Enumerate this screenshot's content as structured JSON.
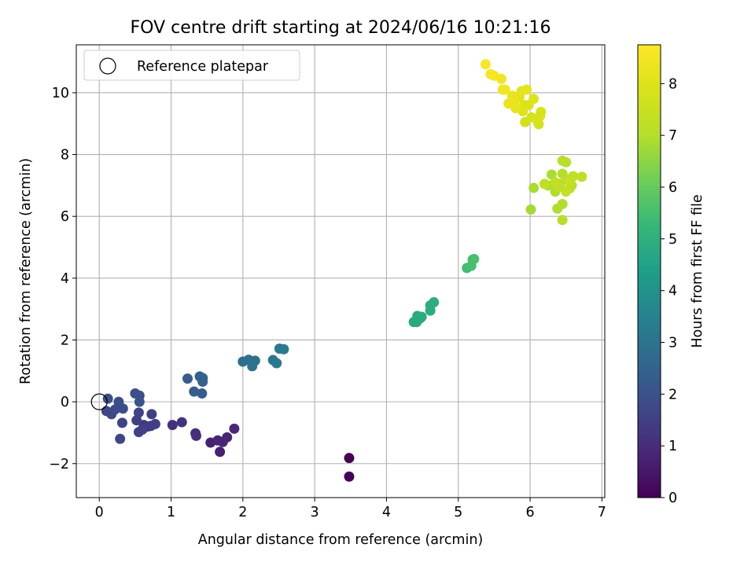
{
  "chart_data": {
    "type": "scatter",
    "title": "FOV centre drift starting at 2024/06/16 10:21:16",
    "xlabel": "Angular distance from reference (arcmin)",
    "ylabel": "Rotation from reference (arcmin)",
    "xlim": [
      -0.32,
      7.04
    ],
    "ylim": [
      -3.1,
      11.55
    ],
    "xticks": [
      "0",
      "1",
      "2",
      "3",
      "4",
      "5",
      "6",
      "7"
    ],
    "yticks": [
      "−2",
      "0",
      "2",
      "4",
      "6",
      "8",
      "10"
    ],
    "grid": true,
    "legend": {
      "position": "top-left",
      "entries": [
        {
          "label": "Reference platepar",
          "marker": "open-circle",
          "x": 0,
          "y": 0
        }
      ]
    },
    "colorbar": {
      "label": "Hours from first FF file",
      "colormap": "viridis",
      "range": [
        0,
        8.75
      ],
      "ticks": [
        "0",
        "1",
        "2",
        "3",
        "4",
        "5",
        "6",
        "7",
        "8"
      ]
    },
    "points": [
      [
        3.48,
        -1.82,
        0.02
      ],
      [
        3.48,
        -2.42,
        0.05
      ],
      [
        1.68,
        -1.62,
        0.7
      ],
      [
        1.55,
        -1.32,
        0.75
      ],
      [
        1.65,
        -1.25,
        0.8
      ],
      [
        1.72,
        -1.3,
        0.8
      ],
      [
        1.78,
        -1.15,
        0.82
      ],
      [
        1.88,
        -0.87,
        0.9
      ],
      [
        1.34,
        -1.02,
        1.0
      ],
      [
        1.35,
        -1.1,
        1.05
      ],
      [
        1.02,
        -0.75,
        1.1
      ],
      [
        1.15,
        -0.66,
        1.15
      ],
      [
        0.62,
        -0.75,
        1.3
      ],
      [
        0.68,
        -0.8,
        1.35
      ],
      [
        0.72,
        -0.78,
        1.4
      ],
      [
        0.78,
        -0.72,
        1.45
      ],
      [
        0.73,
        -0.4,
        1.5
      ],
      [
        0.6,
        -0.9,
        1.5
      ],
      [
        0.55,
        -0.98,
        1.55
      ],
      [
        0.52,
        -0.6,
        1.55
      ],
      [
        0.55,
        -0.35,
        1.6
      ],
      [
        0.32,
        -0.68,
        1.6
      ],
      [
        0.29,
        -1.2,
        1.65
      ],
      [
        0.1,
        -0.3,
        1.7
      ],
      [
        0.17,
        -0.4,
        1.75
      ],
      [
        0.22,
        -0.25,
        1.8
      ],
      [
        0.27,
        0.0,
        1.85
      ],
      [
        0.33,
        -0.22,
        1.85
      ],
      [
        0.12,
        0.1,
        1.9
      ],
      [
        0.5,
        0.27,
        1.95
      ],
      [
        0.56,
        0.2,
        2.0
      ],
      [
        0.56,
        0.0,
        2.05
      ],
      [
        1.23,
        0.75,
        2.25
      ],
      [
        1.32,
        0.33,
        2.3
      ],
      [
        1.43,
        0.27,
        2.35
      ],
      [
        1.4,
        0.82,
        2.4
      ],
      [
        1.44,
        0.77,
        2.45
      ],
      [
        1.44,
        0.65,
        2.45
      ],
      [
        2.0,
        1.3,
        2.85
      ],
      [
        2.08,
        1.36,
        2.9
      ],
      [
        2.13,
        1.15,
        2.95
      ],
      [
        2.17,
        1.33,
        3.0
      ],
      [
        2.42,
        1.35,
        3.1
      ],
      [
        2.47,
        1.25,
        3.15
      ],
      [
        2.51,
        1.72,
        3.2
      ],
      [
        2.57,
        1.7,
        3.25
      ],
      [
        4.38,
        2.58,
        4.75
      ],
      [
        4.42,
        2.58,
        4.75
      ],
      [
        4.43,
        2.78,
        4.8
      ],
      [
        4.47,
        2.7,
        4.85
      ],
      [
        4.49,
        2.75,
        4.85
      ],
      [
        4.61,
        2.95,
        4.9
      ],
      [
        4.61,
        3.12,
        4.9
      ],
      [
        4.66,
        3.22,
        4.95
      ],
      [
        5.12,
        4.33,
        5.45
      ],
      [
        5.18,
        4.4,
        5.5
      ],
      [
        5.2,
        4.6,
        5.55
      ],
      [
        5.22,
        4.62,
        5.55
      ],
      [
        6.01,
        6.22,
        6.8
      ],
      [
        6.05,
        6.92,
        6.85
      ],
      [
        6.3,
        7.35,
        6.9
      ],
      [
        6.25,
        7.0,
        6.9
      ],
      [
        6.35,
        6.8,
        6.95
      ],
      [
        6.38,
        6.25,
        6.95
      ],
      [
        6.42,
        7.05,
        7.0
      ],
      [
        6.45,
        7.38,
        7.0
      ],
      [
        6.45,
        6.4,
        7.0
      ],
      [
        6.45,
        5.88,
        7.05
      ],
      [
        6.45,
        7.8,
        7.05
      ],
      [
        6.5,
        7.75,
        7.1
      ],
      [
        6.52,
        7.2,
        7.1
      ],
      [
        6.55,
        6.9,
        7.15
      ],
      [
        6.58,
        7.0,
        7.15
      ],
      [
        6.6,
        7.3,
        7.2
      ],
      [
        6.72,
        7.28,
        7.25
      ],
      [
        6.2,
        7.05,
        7.25
      ],
      [
        6.35,
        7.1,
        7.3
      ],
      [
        6.4,
        6.95,
        7.3
      ],
      [
        6.5,
        6.8,
        7.35
      ],
      [
        6.55,
        7.15,
        7.4
      ],
      [
        5.93,
        9.05,
        7.75
      ],
      [
        6.02,
        9.2,
        7.8
      ],
      [
        6.12,
        8.98,
        7.8
      ],
      [
        6.1,
        9.1,
        7.85
      ],
      [
        6.14,
        9.25,
        7.85
      ],
      [
        6.15,
        9.38,
        7.9
      ],
      [
        5.98,
        9.6,
        7.95
      ],
      [
        6.05,
        9.8,
        8.0
      ],
      [
        5.92,
        9.6,
        8.0
      ],
      [
        5.9,
        9.4,
        8.05
      ],
      [
        5.85,
        9.85,
        8.1
      ],
      [
        5.95,
        10.1,
        8.15
      ],
      [
        5.88,
        10.05,
        8.2
      ],
      [
        5.8,
        9.5,
        8.2
      ],
      [
        5.78,
        9.7,
        8.25
      ],
      [
        5.75,
        9.9,
        8.3
      ],
      [
        5.7,
        9.65,
        8.3
      ],
      [
        5.62,
        10.1,
        8.4
      ],
      [
        5.6,
        10.45,
        8.45
      ],
      [
        5.5,
        10.55,
        8.55
      ],
      [
        5.45,
        10.6,
        8.6
      ],
      [
        5.38,
        10.92,
        8.65
      ],
      [
        5.65,
        10.1,
        8.45
      ]
    ]
  }
}
